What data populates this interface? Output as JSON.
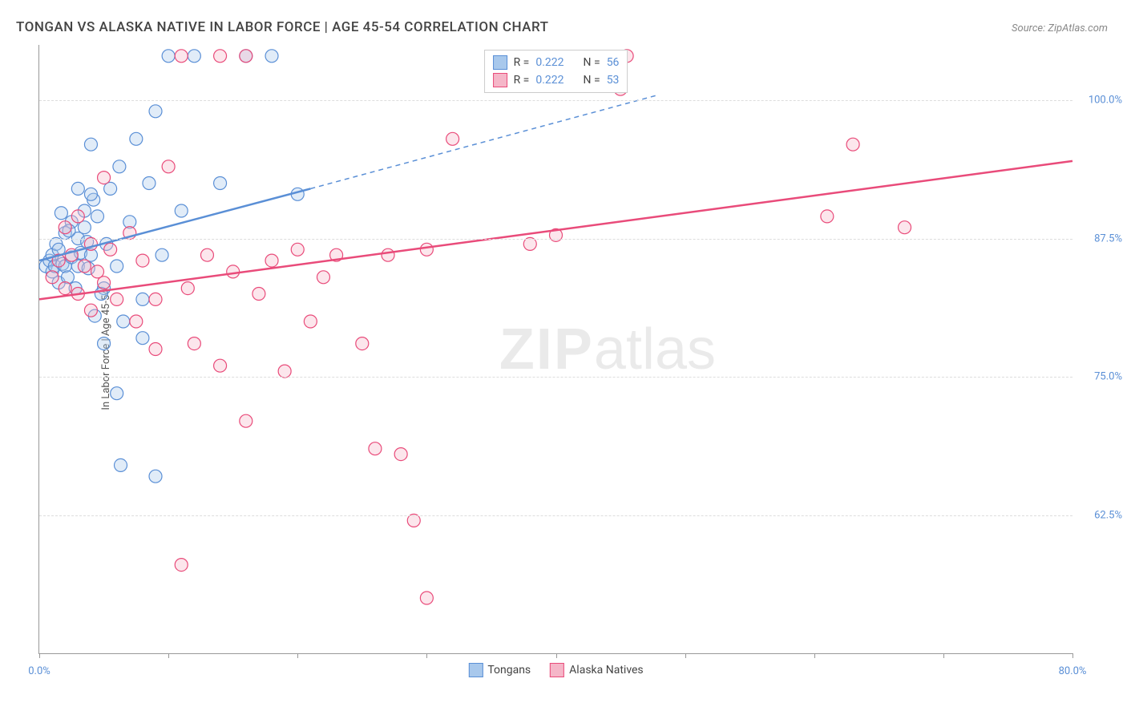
{
  "title": "TONGAN VS ALASKA NATIVE IN LABOR FORCE | AGE 45-54 CORRELATION CHART",
  "source_label": "Source: ZipAtlas.com",
  "y_axis_label": "In Labor Force | Age 45-54",
  "watermark_bold": "ZIP",
  "watermark_light": "atlas",
  "chart": {
    "type": "scatter",
    "background_color": "#ffffff",
    "grid_color": "#dddddd",
    "axis_color": "#999999",
    "tick_label_color": "#5a8fd6",
    "title_fontsize": 17,
    "label_fontsize": 13,
    "xlim": [
      0,
      80
    ],
    "ylim": [
      50,
      105
    ],
    "x_ticks": [
      0,
      10,
      20,
      30,
      40,
      50,
      60,
      70,
      80
    ],
    "x_tick_labels": {
      "0": "0.0%",
      "80": "80.0%"
    },
    "y_ticks": [
      62.5,
      75.0,
      87.5,
      100.0
    ],
    "y_tick_labels": [
      "62.5%",
      "75.0%",
      "87.5%",
      "100.0%"
    ],
    "marker_radius": 8,
    "marker_fill_opacity": 0.35,
    "line_width": 2.5,
    "series": [
      {
        "name": "Tongans",
        "color": "#5a8fd6",
        "fill": "#a8c8ec",
        "r_label": "R =",
        "r_value": "0.222",
        "n_label": "N =",
        "n_value": "56",
        "trend": {
          "x1": 0,
          "y1": 85.5,
          "x2": 21,
          "y2": 92,
          "x2_ext": 48,
          "y2_ext": 100.5
        },
        "points": [
          [
            0.5,
            85
          ],
          [
            0.8,
            85.5
          ],
          [
            1,
            86
          ],
          [
            1,
            84.5
          ],
          [
            1.2,
            85
          ],
          [
            1.3,
            87
          ],
          [
            1.5,
            83.5
          ],
          [
            1.5,
            86.5
          ],
          [
            1.8,
            85.2
          ],
          [
            2,
            88
          ],
          [
            2,
            85
          ],
          [
            2.2,
            84
          ],
          [
            2.5,
            89
          ],
          [
            2.5,
            85.8
          ],
          [
            2.8,
            83
          ],
          [
            3,
            87.5
          ],
          [
            3,
            85
          ],
          [
            3.2,
            86.2
          ],
          [
            3.5,
            88.5
          ],
          [
            3.5,
            90
          ],
          [
            3.8,
            84.8
          ],
          [
            4,
            86
          ],
          [
            4.2,
            91
          ],
          [
            4.5,
            89.5
          ],
          [
            5,
            78
          ],
          [
            5,
            83
          ],
          [
            5.5,
            92
          ],
          [
            6,
            85
          ],
          [
            6.2,
            94
          ],
          [
            6.5,
            80
          ],
          [
            7,
            89
          ],
          [
            7.5,
            96.5
          ],
          [
            8,
            82
          ],
          [
            8.5,
            92.5
          ],
          [
            9,
            99
          ],
          [
            9.5,
            86
          ],
          [
            10,
            104
          ],
          [
            11,
            90
          ],
          [
            12,
            104
          ],
          [
            6,
            73.5
          ],
          [
            6.3,
            67
          ],
          [
            3,
            92
          ],
          [
            4,
            91.5
          ],
          [
            4.3,
            80.5
          ],
          [
            5.2,
            87
          ],
          [
            2.3,
            88.2
          ],
          [
            1.7,
            89.8
          ],
          [
            4.8,
            82.5
          ],
          [
            14,
            92.5
          ],
          [
            16,
            104
          ],
          [
            18,
            104
          ],
          [
            20,
            91.5
          ],
          [
            4,
            96
          ],
          [
            9,
            66
          ],
          [
            8,
            78.5
          ],
          [
            3.7,
            87.2
          ]
        ]
      },
      {
        "name": "Alaska Natives",
        "color": "#e94b7a",
        "fill": "#f5b6c8",
        "r_label": "R =",
        "r_value": "0.222",
        "n_label": "N =",
        "n_value": "53",
        "trend": {
          "x1": 0,
          "y1": 82,
          "x2": 80,
          "y2": 94.5
        },
        "points": [
          [
            1,
            84
          ],
          [
            1.5,
            85.5
          ],
          [
            2,
            83
          ],
          [
            2.5,
            86
          ],
          [
            3,
            82.5
          ],
          [
            3.5,
            85
          ],
          [
            4,
            81
          ],
          [
            4.5,
            84.5
          ],
          [
            5,
            83.5
          ],
          [
            5.5,
            86.5
          ],
          [
            6,
            82
          ],
          [
            7,
            88
          ],
          [
            7.5,
            80
          ],
          [
            8,
            85.5
          ],
          [
            9,
            77.5
          ],
          [
            10,
            94
          ],
          [
            11,
            58
          ],
          [
            11.5,
            83
          ],
          [
            12,
            78
          ],
          [
            13,
            86
          ],
          [
            14,
            76
          ],
          [
            15,
            84.5
          ],
          [
            16,
            71
          ],
          [
            17,
            82.5
          ],
          [
            18,
            85.5
          ],
          [
            19,
            75.5
          ],
          [
            20,
            86.5
          ],
          [
            21,
            80
          ],
          [
            22,
            84
          ],
          [
            23,
            86
          ],
          [
            25,
            78
          ],
          [
            26,
            68.5
          ],
          [
            27,
            86
          ],
          [
            28,
            68
          ],
          [
            29,
            62
          ],
          [
            30,
            55
          ],
          [
            32,
            96.5
          ],
          [
            38,
            87
          ],
          [
            40,
            87.8
          ],
          [
            45,
            101
          ],
          [
            45.5,
            104
          ],
          [
            61,
            89.5
          ],
          [
            63,
            96
          ],
          [
            67,
            88.5
          ],
          [
            2,
            88.5
          ],
          [
            3,
            89.5
          ],
          [
            4,
            87
          ],
          [
            11,
            104
          ],
          [
            14,
            104
          ],
          [
            16,
            104
          ],
          [
            5,
            93
          ],
          [
            30,
            86.5
          ],
          [
            9,
            82
          ]
        ]
      }
    ]
  },
  "legend_bottom": [
    {
      "label": "Tongans",
      "fill": "#a8c8ec",
      "stroke": "#5a8fd6"
    },
    {
      "label": "Alaska Natives",
      "fill": "#f5b6c8",
      "stroke": "#e94b7a"
    }
  ]
}
